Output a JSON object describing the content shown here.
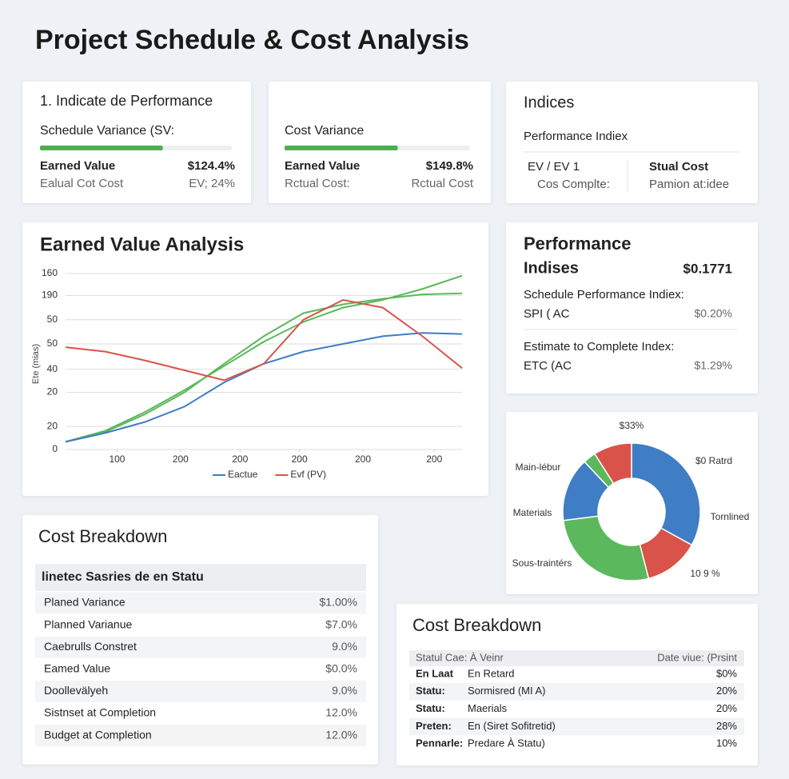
{
  "header": {
    "title": "Project Schedule & Cost Analysis"
  },
  "variance_cards": [
    {
      "title": "1. Indicate de Performance",
      "label": "Schedule Variance (SV:",
      "progress": 64,
      "rows": [
        [
          "Earned Value",
          "$124.4%"
        ],
        [
          "Ealual Cot Cost",
          "EV; 24%"
        ]
      ]
    },
    {
      "label": "Cost Variance",
      "progress": 61,
      "rows": [
        [
          "Earned Value",
          "$149.8%"
        ],
        [
          "Rctual Cost:",
          "Rctual Cost"
        ]
      ]
    }
  ],
  "indices": {
    "title": "Indices",
    "subtitle": "Performance Indiex",
    "columns": [
      [
        "EV / EV 1",
        "Cos Complte:"
      ],
      [
        "Stual Cost",
        "Pamion at:idee"
      ]
    ]
  },
  "performance": {
    "title": [
      "Performance",
      "Indises"
    ],
    "value": "$0.1771",
    "items": [
      {
        "label": "Schedule Performance Indiex:",
        "key": "SPI ( AC",
        "value": "$0.20%"
      },
      {
        "label": "Estimate to Complete Index:",
        "key": "ETC (AC",
        "value": "$1.29%"
      }
    ]
  },
  "cost_breakdown": {
    "title": "Cost Breakdown",
    "header": "linetec Sasries de en Statu",
    "rows": [
      [
        "Planed Variance",
        "$1.00%"
      ],
      [
        "Planned Varianue",
        "$7.0%"
      ],
      [
        "Caebrulls Constret",
        "9.0%"
      ],
      [
        "Eamed Value",
        "$0.0%"
      ],
      [
        "Doollevälyeh",
        "9.0%"
      ],
      [
        "Sistnset at Completion",
        "12.0%"
      ],
      [
        "Budget at Completion",
        "12.0%"
      ]
    ]
  },
  "status_breakdown": {
    "title": "Cost Breakdown",
    "header": [
      "Statul Cae: À Veinr",
      "Date viue: (Prsint"
    ],
    "rows": [
      [
        "En Laat",
        "En Retard",
        "$0%"
      ],
      [
        "Statu:",
        "Sormisred (MI A)",
        "20%"
      ],
      [
        "Statu:",
        "Maerials",
        "20%"
      ],
      [
        "Preten:",
        "En (Siret Sofitretid)",
        "28%"
      ],
      [
        "Pennarle:",
        "Predare À Statu)",
        "10%"
      ]
    ]
  },
  "chart_data": [
    {
      "type": "line",
      "title": "Earned Value Analysis",
      "y_label": "Ete (mias)",
      "x": [
        0,
        10,
        20,
        30,
        40,
        50,
        60,
        70,
        80,
        90,
        100
      ],
      "xlim": [
        0,
        100
      ],
      "xticks": [
        {
          "value": 13,
          "label": "100"
        },
        {
          "value": 29,
          "label": "200"
        },
        {
          "value": 44,
          "label": "200"
        },
        {
          "value": 59,
          "label": "200"
        },
        {
          "value": 75,
          "label": "200"
        },
        {
          "value": 93,
          "label": "200"
        }
      ],
      "ylim": [
        0,
        160
      ],
      "yticks": [
        0,
        {
          "value": 21,
          "label": "20"
        },
        {
          "value": 52,
          "label": "20"
        },
        {
          "value": 73,
          "label": "40"
        },
        {
          "value": 96,
          "label": "50"
        },
        {
          "value": 118,
          "label": "50"
        },
        {
          "value": 140,
          "label": "190"
        },
        160
      ],
      "grid": true,
      "series": [
        {
          "color": "#5cb85c",
          "values": [
            7,
            17,
            34,
            54,
            76,
            98,
            116,
            129,
            136,
            146,
            158
          ]
        },
        {
          "color": "#5cb85c",
          "values": [
            7,
            16,
            32,
            52,
            78,
            103,
            124,
            132,
            137,
            141,
            142
          ]
        },
        {
          "name": "Eactue",
          "color": "#3f7dc4",
          "values": [
            7,
            15,
            25,
            39,
            61,
            78,
            89,
            96,
            103,
            106,
            105
          ]
        },
        {
          "name": "Evf (PV)",
          "color": "#d9534a",
          "values": [
            93,
            89,
            81,
            72,
            63,
            78,
            118,
            136,
            129,
            103,
            74
          ]
        }
      ]
    },
    {
      "type": "pie",
      "categories": [
        "$0 Ratrd",
        "Tornlined",
        "Sous-traintérs",
        "Materials",
        null,
        "Main-lébur"
      ],
      "values": [
        33,
        13,
        27,
        15,
        3,
        9
      ],
      "value_labels": [
        "$33%",
        null,
        null,
        null,
        null,
        null
      ],
      "colors": [
        "#3f7dc4",
        "#d9534a",
        "#5cb85c",
        "#3f7dc4",
        "#5cb85c",
        "#d9534a"
      ],
      "annotations": [
        "10 9 %"
      ]
    }
  ]
}
